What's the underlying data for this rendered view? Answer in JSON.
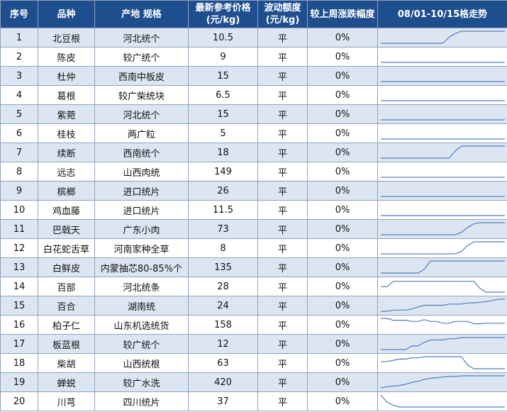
{
  "table": {
    "headers": {
      "idx": "序号",
      "variety": "品种",
      "origin_spec": "产地 规格",
      "price_l1": "最新参考价格",
      "price_l2": "(元/kg)",
      "vol_l1": "波动额度",
      "vol_l2": "(元/kg)",
      "change": "较上周涨跌幅度",
      "trend": "08/01-10/15格走势"
    },
    "rows": [
      {
        "idx": "1",
        "variety": "北豆根",
        "spec": "河北统个",
        "price": "10.5",
        "vol": "平",
        "change": "0%",
        "trend": [
          0,
          0,
          0,
          0,
          0,
          0,
          0,
          0,
          0,
          0,
          0,
          0.5,
          0.8,
          1,
          1,
          1,
          1,
          1,
          1,
          1,
          1
        ]
      },
      {
        "idx": "2",
        "variety": "陈皮",
        "spec": "较广统个",
        "price": "9",
        "vol": "平",
        "change": "0%",
        "trend": [
          0,
          0,
          0,
          0,
          0,
          0,
          0,
          0,
          0,
          0,
          0,
          0,
          0,
          0,
          0,
          0,
          0,
          0,
          0,
          0,
          0
        ]
      },
      {
        "idx": "3",
        "variety": "杜仲",
        "spec": "西南中板皮",
        "price": "15",
        "vol": "平",
        "change": "0%",
        "trend": [
          0,
          0,
          0,
          0,
          0,
          0,
          0,
          0,
          0,
          0,
          0,
          0,
          0,
          0,
          0,
          0,
          0,
          0,
          0,
          0,
          0
        ]
      },
      {
        "idx": "4",
        "variety": "葛根",
        "spec": "较广柴统块",
        "price": "6.5",
        "vol": "平",
        "change": "0%",
        "trend": [
          0,
          0,
          0,
          0,
          0,
          0,
          0,
          0,
          0,
          0,
          0,
          0,
          0,
          0,
          0,
          0,
          0,
          0,
          0,
          0,
          0
        ]
      },
      {
        "idx": "5",
        "variety": "紫菀",
        "spec": "河北统个",
        "price": "15",
        "vol": "平",
        "change": "0%",
        "trend": [
          0,
          0,
          0,
          0,
          0,
          0,
          0,
          0,
          0,
          0,
          0,
          0,
          0,
          0,
          0,
          0,
          0,
          0,
          0,
          0,
          0
        ]
      },
      {
        "idx": "6",
        "variety": "桂枝",
        "spec": "两广粒",
        "price": "5",
        "vol": "平",
        "change": "0%",
        "trend": [
          0,
          0,
          0,
          0,
          0,
          0,
          0,
          0,
          0,
          0,
          0,
          0,
          0,
          0,
          0,
          0,
          0,
          0,
          0,
          0,
          0
        ]
      },
      {
        "idx": "7",
        "variety": "续断",
        "spec": "西南统个",
        "price": "18",
        "vol": "平",
        "change": "0%",
        "trend": [
          0,
          0,
          0,
          0,
          0,
          0,
          0,
          0,
          0,
          0,
          0,
          0,
          0.6,
          1,
          1,
          1,
          1,
          1,
          1,
          1,
          1
        ]
      },
      {
        "idx": "8",
        "variety": "远志",
        "spec": "山西肉统",
        "price": "149",
        "vol": "平",
        "change": "0%",
        "trend": [
          0,
          0,
          0,
          0,
          0,
          0,
          0,
          0,
          0,
          0,
          0,
          0,
          0,
          0,
          0,
          0,
          0,
          0,
          0,
          0,
          0
        ]
      },
      {
        "idx": "9",
        "variety": "槟榔",
        "spec": "进口统片",
        "price": "26",
        "vol": "平",
        "change": "0%",
        "trend": [
          0,
          0,
          0,
          0,
          0,
          0,
          0,
          0,
          0,
          0,
          0,
          0,
          0,
          0,
          0,
          0,
          0,
          0,
          0,
          0,
          0
        ]
      },
      {
        "idx": "10",
        "variety": "鸡血藤",
        "spec": "进口统片",
        "price": "11.5",
        "vol": "平",
        "change": "0%",
        "trend": [
          0,
          0,
          0,
          0,
          0,
          0,
          0,
          0,
          0,
          0,
          0,
          0,
          0,
          0,
          0,
          0,
          0,
          0,
          0,
          0,
          0
        ]
      },
      {
        "idx": "11",
        "variety": "巴戟天",
        "spec": "广东小肉",
        "price": "73",
        "vol": "平",
        "change": "0%",
        "trend": [
          0,
          0,
          0,
          0,
          0,
          0,
          0,
          0,
          0,
          0,
          0,
          0,
          0,
          0.2,
          0.6,
          0.9,
          1,
          1,
          1,
          1,
          1
        ]
      },
      {
        "idx": "12",
        "variety": "白花蛇舌草",
        "spec": "河南家种全草",
        "price": "8",
        "vol": "平",
        "change": "0%",
        "trend": [
          0,
          0,
          0,
          0,
          0,
          0,
          0,
          0,
          0,
          0,
          0,
          0,
          0,
          0.2,
          0.7,
          1,
          1,
          1,
          1,
          1,
          1
        ]
      },
      {
        "idx": "13",
        "variety": "白鲜皮",
        "spec": "内蒙抽芯80-85%个",
        "price": "135",
        "vol": "平",
        "change": "0%",
        "trend": [
          0,
          0,
          0,
          0,
          0,
          0,
          0,
          0.3,
          1,
          1,
          1,
          1,
          1,
          1,
          1,
          1,
          1,
          1,
          1,
          1,
          1
        ]
      },
      {
        "idx": "14",
        "variety": "百部",
        "spec": "河北统条",
        "price": "28",
        "vol": "平",
        "change": "0%",
        "trend": [
          0.45,
          0.45,
          0.9,
          0.9,
          0.9,
          0.9,
          0.9,
          0.9,
          0.9,
          0.9,
          0.9,
          0.9,
          0.9,
          0.9,
          0.9,
          0.9,
          0.3,
          0,
          0,
          0,
          0
        ]
      },
      {
        "idx": "15",
        "variety": "百合",
        "spec": "湖南统",
        "price": "24",
        "vol": "平",
        "change": "0%",
        "trend": [
          0,
          0,
          0.1,
          0.1,
          0.1,
          0.2,
          0.35,
          0.5,
          0.5,
          0.5,
          0.5,
          0.6,
          0.6,
          0.6,
          0.7,
          0.7,
          0.75,
          0.8,
          0.9,
          1,
          1
        ]
      },
      {
        "idx": "16",
        "variety": "柏子仁",
        "spec": "山东机选统货",
        "price": "158",
        "vol": "平",
        "change": "0%",
        "trend": [
          1,
          1,
          0.85,
          0.85,
          0.85,
          0.75,
          0.75,
          0.9,
          0.75,
          0.75,
          0.6,
          0.6,
          0.75,
          0.75,
          0.75,
          0.55,
          0.55,
          0.6,
          0.6,
          0.6,
          0.6
        ]
      },
      {
        "idx": "17",
        "variety": "板蓝根",
        "spec": "较广统个",
        "price": "12",
        "vol": "平",
        "change": "0%",
        "trend": [
          0,
          0,
          0,
          0,
          0,
          0.3,
          0.3,
          0.6,
          0.8,
          0.8,
          0.8,
          0.9,
          0.9,
          1,
          1,
          1,
          1,
          1,
          1,
          1,
          1
        ]
      },
      {
        "idx": "18",
        "variety": "柴胡",
        "spec": "山西统根",
        "price": "63",
        "vol": "平",
        "change": "0%",
        "trend": [
          0.6,
          0.6,
          0.7,
          0.8,
          0.8,
          0.9,
          0.9,
          1,
          1,
          1,
          1,
          1,
          1,
          1,
          0.3,
          0,
          0,
          0,
          0,
          0,
          0
        ]
      },
      {
        "idx": "19",
        "variety": "蝉蜕",
        "spec": "较广水洗",
        "price": "420",
        "vol": "平",
        "change": "0%",
        "trend": [
          0,
          0.1,
          0.15,
          0.2,
          0.3,
          0.45,
          0.55,
          0.7,
          0.8,
          0.85,
          0.9,
          0.95,
          0.95,
          1,
          1,
          1,
          1,
          1,
          1,
          1,
          1
        ]
      },
      {
        "idx": "20",
        "variety": "川芎",
        "spec": "四川统片",
        "price": "37",
        "vol": "平",
        "change": "0%",
        "trend": [
          1,
          0.4,
          0.15,
          0,
          0,
          0,
          0,
          0,
          0,
          0,
          0,
          0,
          0,
          0,
          0,
          0,
          0,
          0,
          0,
          0,
          0
        ]
      }
    ]
  },
  "colors": {
    "header_bg": "#1f4e8f",
    "row_alt": "#dce6f2",
    "trend_line": "#4f7fbf"
  }
}
